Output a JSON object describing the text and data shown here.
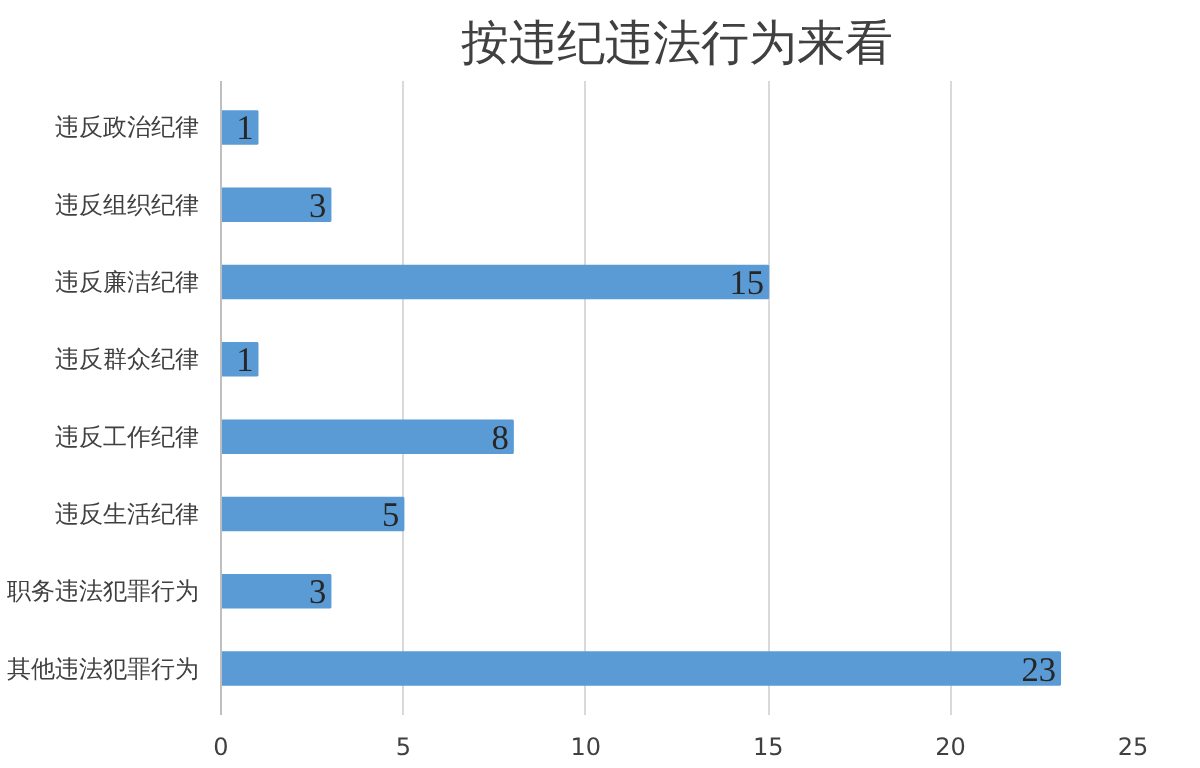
{
  "chart_data": {
    "type": "bar",
    "orientation": "horizontal",
    "title": "按违纪违法行为来看",
    "categories": [
      "违反政治纪律",
      "违反组织纪律",
      "违反廉洁纪律",
      "违反群众纪律",
      "违反工作纪律",
      "违反生活纪律",
      "职务违法犯罪行为",
      "其他违法犯罪行为"
    ],
    "values": [
      1,
      3,
      15,
      1,
      8,
      5,
      3,
      23
    ],
    "color": "#5b9bd5",
    "xlim": [
      0,
      25
    ],
    "xticks": [
      0,
      5,
      10,
      15,
      20,
      25
    ],
    "grid": "x",
    "data_labels": true
  }
}
